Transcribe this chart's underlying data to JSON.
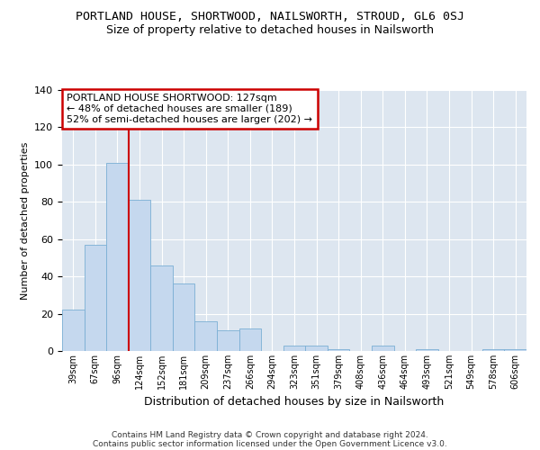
{
  "title": "PORTLAND HOUSE, SHORTWOOD, NAILSWORTH, STROUD, GL6 0SJ",
  "subtitle": "Size of property relative to detached houses in Nailsworth",
  "xlabel": "Distribution of detached houses by size in Nailsworth",
  "ylabel": "Number of detached properties",
  "categories": [
    "39sqm",
    "67sqm",
    "96sqm",
    "124sqm",
    "152sqm",
    "181sqm",
    "209sqm",
    "237sqm",
    "266sqm",
    "294sqm",
    "323sqm",
    "351sqm",
    "379sqm",
    "408sqm",
    "436sqm",
    "464sqm",
    "493sqm",
    "521sqm",
    "549sqm",
    "578sqm",
    "606sqm"
  ],
  "values": [
    22,
    57,
    101,
    81,
    46,
    36,
    16,
    11,
    12,
    0,
    3,
    3,
    1,
    0,
    3,
    0,
    1,
    0,
    0,
    1,
    1
  ],
  "bar_color": "#c5d8ee",
  "bar_edge_color": "#7aafd4",
  "annotation_text_line1": "PORTLAND HOUSE SHORTWOOD: 127sqm",
  "annotation_text_line2": "← 48% of detached houses are smaller (189)",
  "annotation_text_line3": "52% of semi-detached houses are larger (202) →",
  "annotation_box_color": "#ffffff",
  "annotation_box_edge_color": "#cc0000",
  "vline_color": "#cc0000",
  "vline_x": 2.5,
  "ylim": [
    0,
    140
  ],
  "yticks": [
    0,
    20,
    40,
    60,
    80,
    100,
    120,
    140
  ],
  "background_color": "#dde6f0",
  "grid_color": "#ffffff",
  "footer_line1": "Contains HM Land Registry data © Crown copyright and database right 2024.",
  "footer_line2": "Contains public sector information licensed under the Open Government Licence v3.0."
}
